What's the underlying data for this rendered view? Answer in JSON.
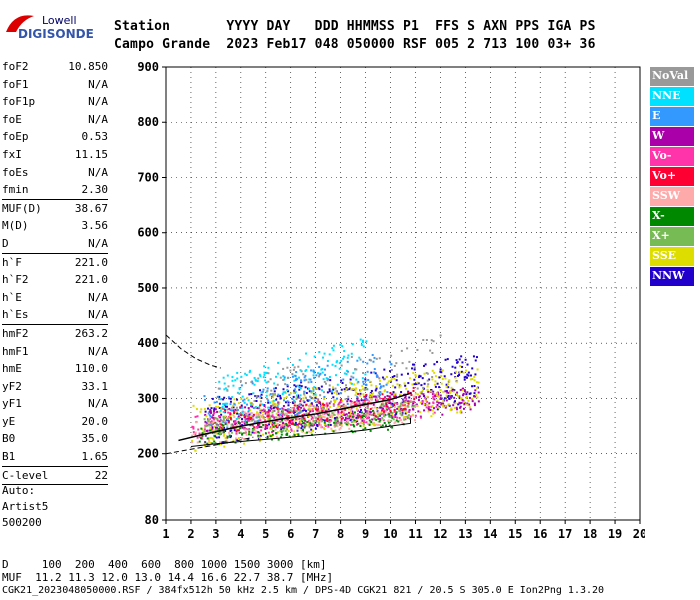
{
  "logo": {
    "line1": "Lowell",
    "line2": "DIGISONDE"
  },
  "header": {
    "labels": "Station       YYYY DAY   DDD HHMMSS P1  FFS S AXN PPS IGA PS",
    "values": "Campo Grande  2023 Feb17 048 050000 RSF 005 2 713 100 03+ 36"
  },
  "params": {
    "group1": [
      {
        "name": "foF2",
        "value": "10.850"
      },
      {
        "name": "foF1",
        "value": "N/A"
      },
      {
        "name": "foF1p",
        "value": "N/A"
      },
      {
        "name": "foE",
        "value": "N/A"
      },
      {
        "name": "foEp",
        "value": "0.53"
      },
      {
        "name": "fxI",
        "value": "11.15"
      },
      {
        "name": "foEs",
        "value": "N/A"
      },
      {
        "name": "fmin",
        "value": "2.30"
      }
    ],
    "group2": [
      {
        "name": "MUF(D)",
        "value": "38.67"
      },
      {
        "name": "M(D)",
        "value": "3.56"
      },
      {
        "name": "D",
        "value": "N/A"
      }
    ],
    "group3": [
      {
        "name": "h`F",
        "value": "221.0"
      },
      {
        "name": "h`F2",
        "value": "221.0"
      },
      {
        "name": "h`E",
        "value": "N/A"
      },
      {
        "name": "h`Es",
        "value": "N/A"
      }
    ],
    "group4": [
      {
        "name": "hmF2",
        "value": "263.2"
      },
      {
        "name": "hmF1",
        "value": "N/A"
      },
      {
        "name": "hmE",
        "value": "110.0"
      },
      {
        "name": "yF2",
        "value": "33.1"
      },
      {
        "name": "yF1",
        "value": "N/A"
      },
      {
        "name": "yE",
        "value": "20.0"
      },
      {
        "name": "B0",
        "value": "35.0"
      },
      {
        "name": "B1",
        "value": "1.65"
      }
    ],
    "group5": [
      {
        "name": "C-level",
        "value": "22"
      }
    ]
  },
  "auto": {
    "line1": "Auto:",
    "line2": "Artist5",
    "line3": "500200"
  },
  "legend": [
    {
      "label": "NoVal",
      "color": "#999999"
    },
    {
      "label": "NNE",
      "color": "#00e0ff"
    },
    {
      "label": "E",
      "color": "#3399ff"
    },
    {
      "label": "W",
      "color": "#aa00aa"
    },
    {
      "label": "Vo-",
      "color": "#ff33aa"
    },
    {
      "label": "Vo+",
      "color": "#ff0033"
    },
    {
      "label": "SSW",
      "color": "#ffaaaa"
    },
    {
      "label": "X-",
      "color": "#008800"
    },
    {
      "label": "X+",
      "color": "#77bb55"
    },
    {
      "label": "SSE",
      "color": "#dddd00"
    },
    {
      "label": "NNW",
      "color": "#2200cc"
    }
  ],
  "chart_data": {
    "type": "scatter",
    "xlim": [
      1,
      20
    ],
    "ylim": [
      80,
      900
    ],
    "x_ticks": [
      1,
      2,
      3,
      4,
      5,
      6,
      7,
      8,
      9,
      10,
      11,
      12,
      13,
      14,
      15,
      16,
      17,
      18,
      19,
      20
    ],
    "y_ticks": [
      80,
      200,
      300,
      400,
      500,
      600,
      700,
      800,
      900
    ],
    "grid": true,
    "legend_placement": "right",
    "clusters": [
      {
        "color": "#2200cc",
        "x": [
          2.5,
          13.5
        ],
        "y": [
          240,
          420
        ],
        "n": 420
      },
      {
        "color": "#aa00aa",
        "x": [
          2.5,
          13.5
        ],
        "y": [
          250,
          340
        ],
        "n": 380
      },
      {
        "color": "#ff33aa",
        "x": [
          2.0,
          12.0
        ],
        "y": [
          240,
          330
        ],
        "n": 260
      },
      {
        "color": "#dddd00",
        "x": [
          2.0,
          13.5
        ],
        "y": [
          230,
          400
        ],
        "n": 380
      },
      {
        "color": "#00e0ff",
        "x": [
          3.0,
          9.0
        ],
        "y": [
          280,
          450
        ],
        "n": 160
      },
      {
        "color": "#3399ff",
        "x": [
          2.5,
          10.0
        ],
        "y": [
          260,
          420
        ],
        "n": 140
      },
      {
        "color": "#ffaaaa",
        "x": [
          2.0,
          11.0
        ],
        "y": [
          230,
          330
        ],
        "n": 200
      },
      {
        "color": "#008800",
        "x": [
          2.2,
          10.5
        ],
        "y": [
          225,
          300
        ],
        "n": 140
      },
      {
        "color": "#77bb55",
        "x": [
          2.5,
          11.0
        ],
        "y": [
          240,
          320
        ],
        "n": 140
      },
      {
        "color": "#ff0033",
        "x": [
          3.0,
          11.0
        ],
        "y": [
          250,
          340
        ],
        "n": 110
      },
      {
        "color": "#999999",
        "x": [
          3.0,
          12.0
        ],
        "y": [
          260,
          460
        ],
        "n": 130
      }
    ],
    "trace_dashed": {
      "x": [
        1.0,
        1.5,
        2.0,
        2.5,
        3.0,
        3.5,
        4.0,
        4.5
      ],
      "y": [
        200,
        204,
        208,
        212,
        216,
        220,
        225,
        230
      ]
    },
    "trace_dashed_upper": {
      "x": [
        1.0,
        1.6,
        2.2,
        2.8,
        3.2
      ],
      "y": [
        415,
        390,
        372,
        360,
        355
      ]
    },
    "trace_solid": {
      "x": [
        2.0,
        3.0,
        4.0,
        5.0,
        6.0,
        7.0,
        8.0,
        9.0,
        10.0,
        10.8,
        10.8
      ],
      "y": [
        213,
        218,
        222,
        226,
        230,
        234,
        238,
        243,
        250,
        255,
        265
      ]
    },
    "trace_black_profile": {
      "x": [
        1.5,
        2.5,
        4,
        5.5,
        7,
        8.5,
        10,
        10.85
      ],
      "y": [
        224,
        235,
        250,
        262,
        272,
        285,
        298,
        310
      ]
    }
  },
  "footer": {
    "line1": "D     100  200  400  600  800 1000 1500 3000 [km]",
    "line2": "MUF  11.2 11.3 12.0 13.0 14.4 16.6 22.7 38.7 [MHz]",
    "line3": "CGK21_2023048050000.RSF / 384fx512h 50 kHz 2.5 km / DPS-4D CGK21 821 / 20.5 S 305.0 E Ion2Png 1.3.20"
  }
}
